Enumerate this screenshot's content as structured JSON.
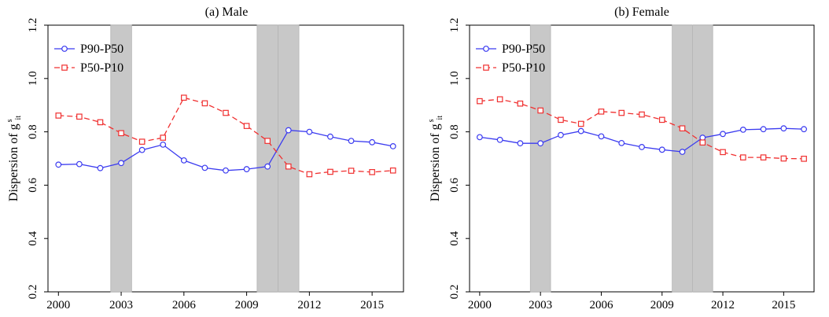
{
  "chart_data": [
    {
      "type": "line",
      "title": "(a) Male",
      "ylabel": "Dispersion of g",
      "ylabel_sup": "s",
      "ylabel_sub": "it",
      "xlim": [
        1999.5,
        2016.5
      ],
      "ylim": [
        0.2,
        1.2
      ],
      "xticks": [
        2000,
        2003,
        2006,
        2009,
        2012,
        2015
      ],
      "yticks": [
        0.2,
        0.4,
        0.6,
        0.8,
        1.0,
        1.2
      ],
      "ytick_labels": [
        "0.2",
        "0.4",
        "0.6",
        "0.8",
        "1.0",
        "1.2"
      ],
      "legend_position": "top-left",
      "recession_bands": [
        [
          2002.5,
          2003.5
        ],
        [
          2009.5,
          2010.5
        ],
        [
          2010.5,
          2011.5
        ]
      ],
      "x": [
        2000,
        2001,
        2002,
        2003,
        2004,
        2005,
        2006,
        2007,
        2008,
        2009,
        2010,
        2011,
        2012,
        2013,
        2014,
        2015,
        2016
      ],
      "series": [
        {
          "name": "P90-P50",
          "color": "#3b3bf0",
          "marker": "circle",
          "dash": "solid",
          "values": [
            0.677,
            0.679,
            0.664,
            0.683,
            0.732,
            0.752,
            0.693,
            0.665,
            0.655,
            0.66,
            0.67,
            0.806,
            0.8,
            0.782,
            0.766,
            0.761,
            0.746
          ]
        },
        {
          "name": "P50-P10",
          "color": "#f03030",
          "marker": "square",
          "dash": "dashed",
          "values": [
            0.861,
            0.857,
            0.836,
            0.795,
            0.763,
            0.778,
            0.928,
            0.907,
            0.871,
            0.822,
            0.766,
            0.67,
            0.641,
            0.65,
            0.654,
            0.649,
            0.655
          ]
        }
      ]
    },
    {
      "type": "line",
      "title": "(b) Female",
      "ylabel": "Dispersion of g",
      "ylabel_sup": "s",
      "ylabel_sub": "it",
      "xlim": [
        1999.5,
        2016.5
      ],
      "ylim": [
        0.2,
        1.2
      ],
      "xticks": [
        2000,
        2003,
        2006,
        2009,
        2012,
        2015
      ],
      "yticks": [
        0.2,
        0.4,
        0.6,
        0.8,
        1.0,
        1.2
      ],
      "ytick_labels": [
        "0.2",
        "0.4",
        "0.6",
        "0.8",
        "1.0",
        "1.2"
      ],
      "legend_position": "top-left",
      "recession_bands": [
        [
          2002.5,
          2003.5
        ],
        [
          2009.5,
          2010.5
        ],
        [
          2010.5,
          2011.5
        ]
      ],
      "x": [
        2000,
        2001,
        2002,
        2003,
        2004,
        2005,
        2006,
        2007,
        2008,
        2009,
        2010,
        2011,
        2012,
        2013,
        2014,
        2015,
        2016
      ],
      "series": [
        {
          "name": "P90-P50",
          "color": "#3b3bf0",
          "marker": "circle",
          "dash": "solid",
          "values": [
            0.78,
            0.77,
            0.757,
            0.757,
            0.788,
            0.803,
            0.783,
            0.758,
            0.743,
            0.733,
            0.725,
            0.778,
            0.792,
            0.808,
            0.81,
            0.813,
            0.81
          ]
        },
        {
          "name": "P50-P10",
          "color": "#f03030",
          "marker": "square",
          "dash": "dashed",
          "values": [
            0.915,
            0.922,
            0.906,
            0.88,
            0.845,
            0.83,
            0.876,
            0.871,
            0.865,
            0.845,
            0.813,
            0.76,
            0.724,
            0.704,
            0.704,
            0.7,
            0.699
          ]
        }
      ]
    }
  ]
}
